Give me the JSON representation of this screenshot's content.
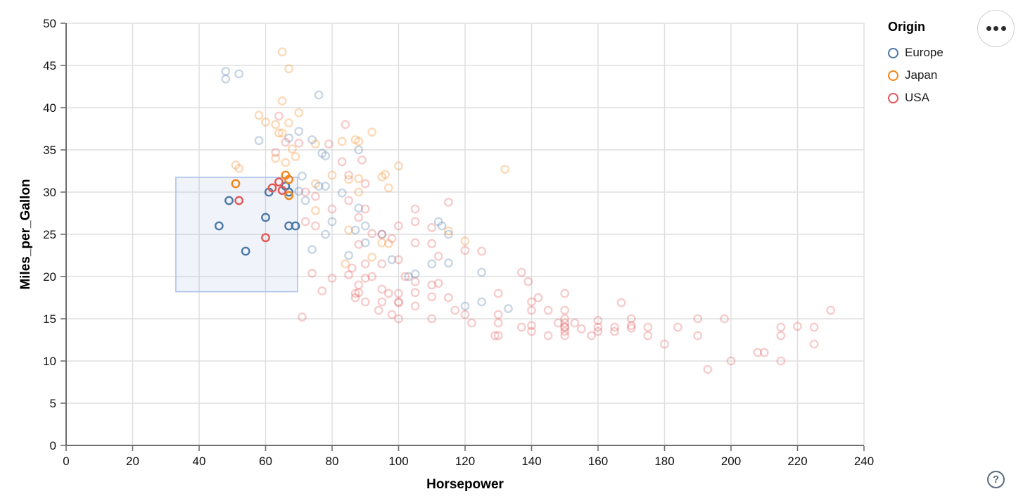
{
  "legend": {
    "title": "Origin",
    "items": [
      {
        "label": "Europe",
        "color": "#4c78a8"
      },
      {
        "label": "Japan",
        "color": "#f58518"
      },
      {
        "label": "USA",
        "color": "#e45756"
      }
    ]
  },
  "controls": {
    "more_options_label": "•••",
    "help_label": "?"
  },
  "colors": {
    "europe": "#4c78a8",
    "japan": "#f58518",
    "usa": "#e45756",
    "grid": "#dfdfdf",
    "axis": "#6f6f6f",
    "brush_fill": "rgba(130,160,210,0.12)",
    "brush_stroke": "#a9c0e8"
  },
  "chart_data": {
    "type": "scatter",
    "title": "",
    "xlabel": "Horsepower",
    "ylabel": "Miles_per_Gallon",
    "xlim": [
      0,
      240
    ],
    "ylim": [
      0,
      50
    ],
    "x_ticks": [
      0,
      20,
      40,
      60,
      80,
      100,
      120,
      140,
      160,
      180,
      200,
      220,
      240
    ],
    "y_ticks": [
      0,
      5,
      10,
      15,
      20,
      25,
      30,
      35,
      40,
      45,
      50
    ],
    "grid": true,
    "legend_position": "top-right",
    "legend_title": "Origin",
    "point_shape": "open-circle",
    "unselected_opacity": 0.3,
    "brush": {
      "x": [
        33,
        69.6
      ],
      "y": [
        18.2,
        31.75
      ]
    },
    "series": [
      {
        "name": "Europe",
        "color": "#4c78a8",
        "selected": [
          [
            46,
            26
          ],
          [
            49,
            29
          ],
          [
            54,
            23
          ],
          [
            60,
            27
          ],
          [
            61,
            30
          ],
          [
            66,
            30.7
          ],
          [
            67,
            30
          ],
          [
            67,
            26
          ],
          [
            69,
            26
          ]
        ],
        "points": [
          [
            48,
            44.3
          ],
          [
            52,
            44
          ],
          [
            48,
            43.4
          ],
          [
            76,
            41.5
          ],
          [
            70,
            37.2
          ],
          [
            67,
            36.4
          ],
          [
            58,
            36.1
          ],
          [
            74,
            36.2
          ],
          [
            78,
            34.3
          ],
          [
            77,
            34.6
          ],
          [
            88,
            35
          ],
          [
            70,
            30.1
          ],
          [
            71,
            31.9
          ],
          [
            76,
            30.7
          ],
          [
            78,
            30.7
          ],
          [
            72,
            29
          ],
          [
            83,
            29.9
          ],
          [
            90,
            26
          ],
          [
            78,
            25
          ],
          [
            88,
            28.1
          ],
          [
            95,
            25
          ],
          [
            90,
            24
          ],
          [
            87,
            25.5
          ],
          [
            113,
            26
          ],
          [
            112,
            26.5
          ],
          [
            115,
            25
          ],
          [
            98,
            22
          ],
          [
            115,
            21.6
          ],
          [
            110,
            21.5
          ],
          [
            105,
            20.3
          ],
          [
            103,
            20
          ],
          [
            125,
            20.5
          ],
          [
            133,
            16.2
          ],
          [
            125,
            17
          ],
          [
            120,
            16.5
          ],
          [
            74,
            23.2
          ],
          [
            85,
            22.5
          ],
          [
            80,
            26.5
          ]
        ]
      },
      {
        "name": "Japan",
        "color": "#f58518",
        "selected": [
          [
            51,
            31
          ],
          [
            66,
            32
          ],
          [
            67,
            31.5
          ],
          [
            67,
            29.6
          ]
        ],
        "points": [
          [
            65,
            46.6
          ],
          [
            67,
            44.6
          ],
          [
            65,
            40.8
          ],
          [
            70,
            39.4
          ],
          [
            58,
            39.1
          ],
          [
            60,
            38.3
          ],
          [
            63,
            38
          ],
          [
            67,
            38.2
          ],
          [
            65,
            37
          ],
          [
            64,
            37
          ],
          [
            92,
            37.1
          ],
          [
            88,
            36
          ],
          [
            87,
            36.2
          ],
          [
            83,
            36
          ],
          [
            75,
            35.7
          ],
          [
            68,
            35.1
          ],
          [
            96,
            32.1
          ],
          [
            100,
            33.1
          ],
          [
            95,
            31.8
          ],
          [
            88,
            31.6
          ],
          [
            97,
            30.5
          ],
          [
            88,
            30
          ],
          [
            132,
            32.7
          ],
          [
            115,
            25.4
          ],
          [
            120,
            24.2
          ],
          [
            97,
            23.9
          ],
          [
            95,
            24
          ],
          [
            92,
            22.3
          ],
          [
            52,
            32.8
          ],
          [
            51,
            33.2
          ],
          [
            63,
            34
          ],
          [
            66,
            33.5
          ],
          [
            69,
            34.2
          ],
          [
            75,
            31
          ],
          [
            80,
            32
          ],
          [
            85,
            31.5
          ],
          [
            75,
            27.8
          ],
          [
            85,
            25.5
          ],
          [
            84,
            21.5
          ]
        ]
      },
      {
        "name": "USA",
        "color": "#e45756",
        "selected": [
          [
            52,
            29
          ],
          [
            60,
            24.6
          ],
          [
            62,
            30.5
          ],
          [
            64,
            31.2
          ],
          [
            65,
            30.2
          ]
        ],
        "points": [
          [
            64,
            39
          ],
          [
            84,
            38
          ],
          [
            79,
            35.7
          ],
          [
            66,
            35.9
          ],
          [
            70,
            35.8
          ],
          [
            63,
            34.7
          ],
          [
            83,
            33.6
          ],
          [
            89,
            33.8
          ],
          [
            85,
            32
          ],
          [
            90,
            31
          ],
          [
            72,
            30
          ],
          [
            75,
            29.5
          ],
          [
            90,
            28
          ],
          [
            88,
            27
          ],
          [
            105,
            28
          ],
          [
            105,
            26.5
          ],
          [
            115,
            28.8
          ],
          [
            95,
            25
          ],
          [
            100,
            26
          ],
          [
            110,
            25.8
          ],
          [
            85,
            29
          ],
          [
            92,
            25.1
          ],
          [
            98,
            24.5
          ],
          [
            105,
            24
          ],
          [
            120,
            23.1
          ],
          [
            125,
            23
          ],
          [
            112,
            22.4
          ],
          [
            110,
            23.9
          ],
          [
            100,
            22
          ],
          [
            88,
            23.8
          ],
          [
            72,
            26.5
          ],
          [
            75,
            26
          ],
          [
            80,
            28
          ],
          [
            71,
            15.2
          ],
          [
            74,
            20.4
          ],
          [
            77,
            18.3
          ],
          [
            80,
            19.8
          ],
          [
            85,
            20.2
          ],
          [
            86,
            21
          ],
          [
            87,
            18
          ],
          [
            87,
            17.5
          ],
          [
            88,
            19
          ],
          [
            88,
            18.1
          ],
          [
            90,
            19.8
          ],
          [
            90,
            17
          ],
          [
            90,
            21.5
          ],
          [
            92,
            20
          ],
          [
            94,
            16
          ],
          [
            95,
            18.5
          ],
          [
            95,
            17
          ],
          [
            95,
            21.5
          ],
          [
            97,
            18
          ],
          [
            98,
            15.5
          ],
          [
            100,
            18
          ],
          [
            100,
            16.9
          ],
          [
            100,
            15
          ],
          [
            102,
            20
          ],
          [
            105,
            19.4
          ],
          [
            105,
            18.1
          ],
          [
            105,
            16.5
          ],
          [
            110,
            19
          ],
          [
            110,
            17.6
          ],
          [
            110,
            15
          ],
          [
            112,
            19.2
          ],
          [
            115,
            17.5
          ],
          [
            100,
            17
          ],
          [
            117,
            16
          ],
          [
            120,
            15.5
          ],
          [
            122,
            14.5
          ],
          [
            129,
            13
          ],
          [
            130,
            13
          ],
          [
            130,
            14.5
          ],
          [
            130,
            18
          ],
          [
            130,
            15.5
          ],
          [
            137,
            14
          ],
          [
            137,
            20.5
          ],
          [
            139,
            19.4
          ],
          [
            140,
            13.5
          ],
          [
            140,
            14.2
          ],
          [
            140,
            16
          ],
          [
            140,
            17
          ],
          [
            142,
            17.5
          ],
          [
            145,
            13
          ],
          [
            145,
            16
          ],
          [
            148,
            14.5
          ],
          [
            150,
            13
          ],
          [
            150,
            13.5
          ],
          [
            150,
            14
          ],
          [
            150,
            14
          ],
          [
            150,
            14.5
          ],
          [
            150,
            15
          ],
          [
            150,
            16
          ],
          [
            150,
            18
          ],
          [
            153,
            14.5
          ],
          [
            155,
            13.8
          ],
          [
            158,
            13
          ],
          [
            160,
            14.8
          ],
          [
            160,
            14
          ],
          [
            160,
            13.5
          ],
          [
            165,
            13.5
          ],
          [
            165,
            14
          ],
          [
            167,
            16.9
          ],
          [
            170,
            15
          ],
          [
            170,
            14.2
          ],
          [
            170,
            13.9
          ],
          [
            175,
            13
          ],
          [
            175,
            14
          ],
          [
            180,
            12
          ],
          [
            184,
            14
          ],
          [
            190,
            15
          ],
          [
            190,
            13
          ],
          [
            198,
            15
          ],
          [
            193,
            9
          ],
          [
            200,
            10
          ],
          [
            208,
            11
          ],
          [
            210,
            11
          ],
          [
            215,
            10
          ],
          [
            215,
            13
          ],
          [
            215,
            14
          ],
          [
            220,
            14.1
          ],
          [
            225,
            14
          ],
          [
            225,
            12
          ],
          [
            230,
            16
          ]
        ]
      }
    ]
  }
}
